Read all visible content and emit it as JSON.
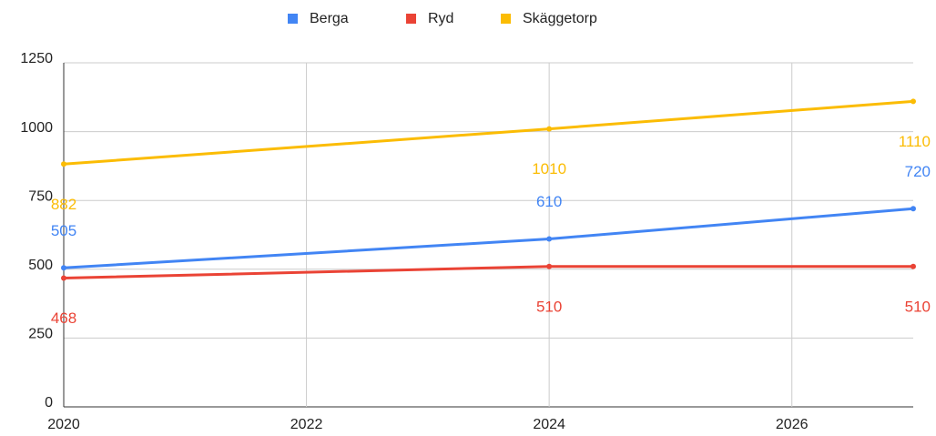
{
  "chart_data": {
    "type": "line",
    "x": [
      2020,
      2024,
      2027
    ],
    "series": [
      {
        "name": "Berga",
        "color": "#4285f4",
        "values": [
          505,
          610,
          720
        ]
      },
      {
        "name": "Ryd",
        "color": "#ea4335",
        "values": [
          468,
          510,
          510
        ]
      },
      {
        "name": "Skäggetorp",
        "color": "#fbbc04",
        "values": [
          882,
          1010,
          1110
        ]
      }
    ],
    "xlim": [
      2020,
      2027
    ],
    "xticks": [
      2020,
      2022,
      2024,
      2026
    ],
    "ylim": [
      0,
      1250
    ],
    "yticks": [
      0,
      250,
      500,
      750,
      1000,
      1250
    ],
    "grid": true,
    "legend": "top"
  }
}
